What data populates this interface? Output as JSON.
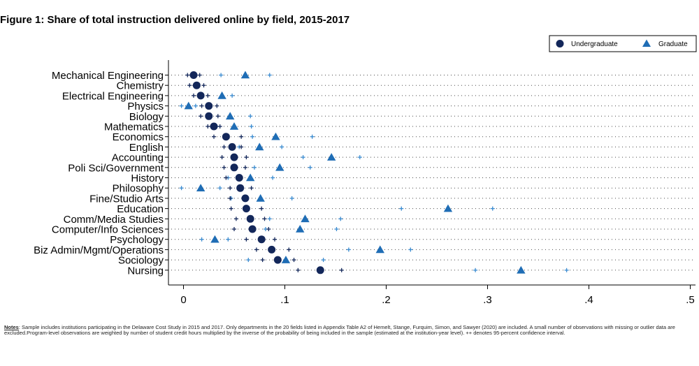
{
  "title": "Figure 1: Share of total instruction delivered online by field, 2015-2017",
  "notes": {
    "label": "Notes",
    "text": "Sample includes institutions participating in the Delaware Cost Study in 2015 and 2017. Only departments in the 20 fields listed in Appendix Table A2 of Hemelt, Stange, Furquim, Simon, and Sawyer (2020) are included. A small number of observations with missing or outlier data are excluded.Program-level observations are weighted by number of student credit hours multiplied by the inverse of the probability of being included in the sample (estimated at the institution-year level). ++ denotes 95-percent confidence interval."
  },
  "colors": {
    "undergraduate": "#13275a",
    "graduate": "#1f6db5",
    "undergraduate_ci": "#13275a",
    "graduate_ci": "#3a8bd0",
    "dotted_line": "#4a4a4a",
    "axis": "#000000"
  },
  "chart_data": {
    "type": "scatter",
    "orientation": "horizontal dot plot with 95% confidence interval markers",
    "xlim": [
      -0.005,
      0.5
    ],
    "x_ticks": [
      0,
      0.1,
      0.2,
      0.3,
      0.4,
      0.5
    ],
    "x_tick_labels": [
      "0",
      ".1",
      ".2",
      ".3",
      ".4",
      ".5"
    ],
    "xlabel": "",
    "ylabel": "",
    "legend_position": "top-right",
    "series": [
      {
        "name": "Undergraduate",
        "marker": "circle"
      },
      {
        "name": "Graduate",
        "marker": "triangle"
      }
    ],
    "categories": [
      "Mechanical Engineering",
      "Chemistry",
      "Electrical Engineering",
      "Physics",
      "Biology",
      "Mathematics",
      "Economics",
      "English",
      "Accounting",
      "Poli Sci/Government",
      "History",
      "Philosophy",
      "Fine/Studio Arts",
      "Education",
      "Comm/Media Studies",
      "Computer/Info Sciences",
      "Psychology",
      "Biz Admin/Mgmt/Operations",
      "Sociology",
      "Nursing"
    ],
    "undergraduate": {
      "values": [
        0.01,
        0.013,
        0.017,
        0.025,
        0.025,
        0.03,
        0.042,
        0.048,
        0.05,
        0.05,
        0.055,
        0.056,
        0.061,
        0.062,
        0.066,
        0.068,
        0.077,
        0.087,
        0.093,
        0.135
      ],
      "ci_low": [
        0.004,
        0.006,
        0.01,
        0.018,
        0.017,
        0.024,
        0.03,
        0.04,
        0.038,
        0.04,
        0.042,
        0.046,
        0.046,
        0.047,
        0.052,
        0.05,
        0.062,
        0.072,
        0.078,
        0.113
      ],
      "ci_high": [
        0.016,
        0.02,
        0.024,
        0.033,
        0.034,
        0.036,
        0.057,
        0.057,
        0.062,
        0.061,
        0.066,
        0.067,
        0.076,
        0.077,
        0.08,
        0.084,
        0.09,
        0.104,
        0.109,
        0.156
      ]
    },
    "graduate": {
      "values": [
        0.061,
        null,
        0.038,
        0.005,
        0.046,
        0.05,
        0.091,
        0.075,
        0.146,
        0.095,
        0.066,
        0.017,
        0.076,
        0.261,
        0.12,
        0.115,
        0.031,
        0.194,
        0.101,
        0.333
      ],
      "ci_low": [
        0.037,
        null,
        null,
        -0.002,
        0.026,
        0.033,
        0.068,
        0.055,
        0.118,
        0.07,
        0.044,
        -0.002,
        0.047,
        0.215,
        0.085,
        0.081,
        0.018,
        0.163,
        0.064,
        0.288
      ],
      "ci_high": [
        0.085,
        null,
        0.048,
        0.012,
        0.066,
        0.067,
        0.127,
        0.097,
        0.174,
        0.125,
        0.088,
        0.036,
        0.107,
        0.305,
        0.155,
        0.151,
        0.044,
        0.224,
        0.138,
        0.378
      ]
    }
  }
}
